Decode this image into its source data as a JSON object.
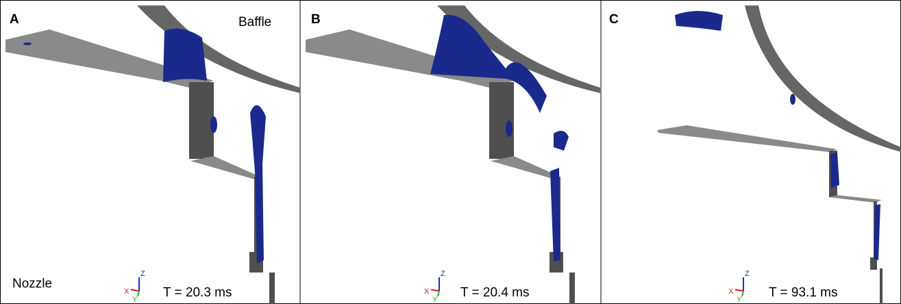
{
  "panels": [
    {
      "label": "A",
      "time": "T = 20.3 ms",
      "annotations": [
        "Baffle",
        "Nozzle"
      ]
    },
    {
      "label": "B",
      "time": "T = 20.4 ms"
    },
    {
      "label": "C",
      "time": "T = 93.1 ms"
    }
  ],
  "triad": {
    "x": "X",
    "y": "Y",
    "z": "Z"
  }
}
